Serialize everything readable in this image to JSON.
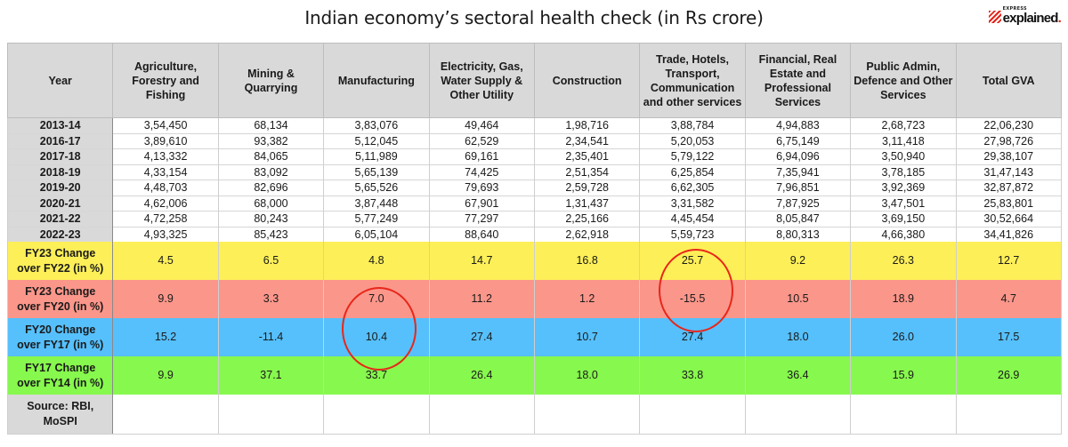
{
  "title": "Indian economy’s sectoral health check (in Rs crore)",
  "logo": {
    "express": "EXPRESS",
    "explained": "explained",
    "dot": "."
  },
  "accent_color": "#e2231a",
  "headers": [
    "Year",
    "Agriculture, Forestry and Fishing",
    "Mining & Quarrying",
    "Manufacturing",
    "Electricity, Gas, Water Supply & Other Utility",
    "Construction",
    "Trade, Hotels, Transport, Communication and other services",
    "Financial, Real Estate and Professional Services",
    "Public Admin, Defence and Other Services",
    "Total GVA"
  ],
  "rows": [
    [
      "2013-14",
      "3,54,450",
      "68,134",
      "3,83,076",
      "49,464",
      "1,98,716",
      "3,88,784",
      "4,94,883",
      "2,68,723",
      "22,06,230"
    ],
    [
      "2016-17",
      "3,89,610",
      "93,382",
      "5,12,045",
      "62,529",
      "2,34,541",
      "5,20,053",
      "6,75,149",
      "3,11,418",
      "27,98,726"
    ],
    [
      "2017-18",
      "4,13,332",
      "84,065",
      "5,11,989",
      "69,161",
      "2,35,401",
      "5,79,122",
      "6,94,096",
      "3,50,940",
      "29,38,107"
    ],
    [
      "2018-19",
      "4,33,154",
      "83,092",
      "5,65,139",
      "74,425",
      "2,51,354",
      "6,25,854",
      "7,35,941",
      "3,78,185",
      "31,47,143"
    ],
    [
      "2019-20",
      "4,48,703",
      "82,696",
      "5,65,526",
      "79,693",
      "2,59,728",
      "6,62,305",
      "7,96,851",
      "3,92,369",
      "32,87,872"
    ],
    [
      "2020-21",
      "4,62,006",
      "68,000",
      "3,87,448",
      "67,901",
      "1,31,437",
      "3,31,582",
      "7,87,925",
      "3,47,501",
      "25,83,801"
    ],
    [
      "2021-22",
      "4,72,258",
      "80,243",
      "5,77,249",
      "77,297",
      "2,25,166",
      "4,45,454",
      "8,05,847",
      "3,69,150",
      "30,52,664"
    ],
    [
      "2022-23",
      "4,93,325",
      "85,423",
      "6,05,104",
      "88,640",
      "2,62,918",
      "5,59,723",
      "8,80,313",
      "4,66,380",
      "34,41,826"
    ]
  ],
  "change_rows": [
    {
      "label_line1": "FY23 Change",
      "label_line2": "over FY22 (in %)",
      "color": "#fdef58",
      "values": [
        "4.5",
        "6.5",
        "4.8",
        "14.7",
        "16.8",
        "25.7",
        "9.2",
        "26.3",
        "12.7"
      ]
    },
    {
      "label_line1": "FY23 Change",
      "label_line2": "over FY20 (in %)",
      "color": "#fb968a",
      "values": [
        "9.9",
        "3.3",
        "7.0",
        "11.2",
        "1.2",
        "-15.5",
        "10.5",
        "18.9",
        "4.7"
      ]
    },
    {
      "label_line1": "FY20 Change",
      "label_line2": "over FY17 (in %)",
      "color": "#56c0fc",
      "values": [
        "15.2",
        "-11.4",
        "10.4",
        "27.4",
        "10.7",
        "27.4",
        "18.0",
        "26.0",
        "17.5"
      ]
    },
    {
      "label_line1": "FY17 Change",
      "label_line2": "over FY14 (in %)",
      "color": "#87f84d",
      "values": [
        "9.9",
        "37.1",
        "33.7",
        "26.4",
        "18.0",
        "33.8",
        "36.4",
        "15.9",
        "26.9"
      ]
    }
  ],
  "source": {
    "line1": "Source: RBI,",
    "line2": "MoSPI"
  },
  "annotations": [
    {
      "column": "Manufacturing",
      "rows": [
        "FY23 Change over FY20 (in %)",
        "FY20 Change over FY17 (in %)"
      ],
      "color": "#e8261a"
    },
    {
      "column": "Trade, Hotels, Transport, Communication and other services",
      "rows": [
        "FY23 Change over FY22 (in %)",
        "FY23 Change over FY20 (in %)"
      ],
      "color": "#e8261a"
    }
  ]
}
